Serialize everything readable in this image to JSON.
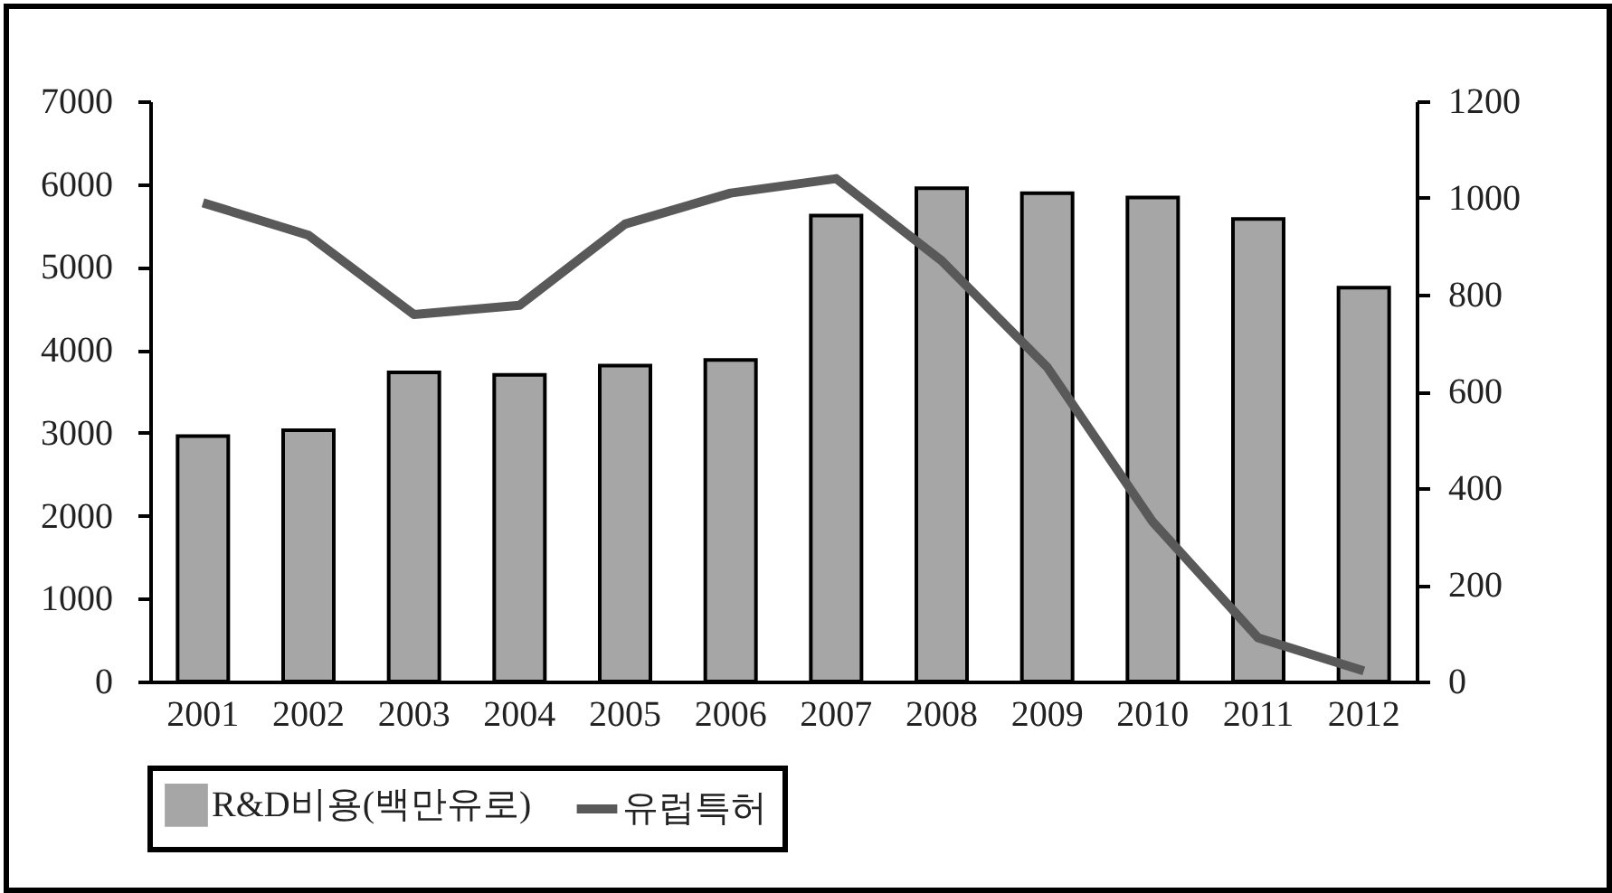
{
  "chart_data": {
    "type": "bar",
    "categories": [
      "2001",
      "2002",
      "2003",
      "2004",
      "2005",
      "2006",
      "2007",
      "2008",
      "2009",
      "2010",
      "2011",
      "2012"
    ],
    "series": [
      {
        "name": "R&D비용(백만유로)",
        "color": "#a6a6a6",
        "values": [
          2960,
          3030,
          3730,
          3700,
          3810,
          3880,
          5620,
          5950,
          5890,
          5840,
          5580,
          4750
        ]
      },
      {
        "name": "유럽특허",
        "type": "line",
        "axis": "y2",
        "color": "#595959",
        "values": [
          990,
          923,
          759,
          778,
          946,
          1010,
          1040,
          870,
          650,
          330,
          90,
          22
        ]
      }
    ],
    "ylim": [
      0,
      7000
    ],
    "yticks": [
      0,
      1000,
      2000,
      3000,
      4000,
      5000,
      6000,
      7000
    ],
    "y2lim": [
      0,
      1200
    ],
    "y2ticks": [
      0,
      200,
      400,
      600,
      800,
      1000,
      1200
    ],
    "legend": "bottom",
    "grid": false
  }
}
